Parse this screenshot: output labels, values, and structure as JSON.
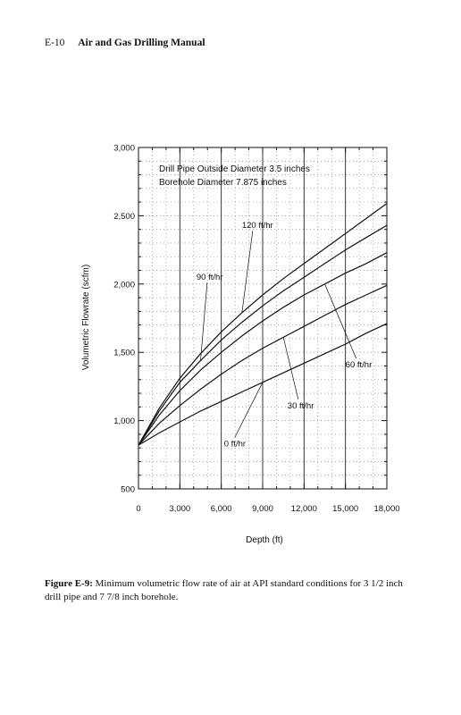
{
  "header": {
    "page_number": "E-10",
    "book_title": "Air and Gas Drilling Manual"
  },
  "caption": {
    "label": "Figure E-9:",
    "text": "Minimum volumetric flow rate of air at API standard conditions for 3 1/2 inch drill pipe and 7 7/8 inch borehole."
  },
  "chart_data": {
    "type": "line",
    "title": "",
    "xlabel": "Depth (ft)",
    "ylabel": "Volumetric Flowrate (scfm)",
    "xlim": [
      0,
      18000
    ],
    "ylim": [
      500,
      3000
    ],
    "x_ticks": [
      0,
      3000,
      6000,
      9000,
      12000,
      15000,
      18000
    ],
    "x_tick_labels": [
      "0",
      "3,000",
      "6,000",
      "9,000",
      "12,000",
      "15,000",
      "18,000"
    ],
    "y_ticks": [
      500,
      1000,
      1500,
      2000,
      2500,
      3000
    ],
    "y_tick_labels": [
      "500",
      "1,000",
      "1,500",
      "2,000",
      "2,500",
      "3,000"
    ],
    "grid": true,
    "annotations": [
      "Drill Pipe Outside Diameter 3.5 inches",
      "Borehole Diameter 7.875 inches"
    ],
    "x": [
      0,
      1500,
      3000,
      4500,
      6000,
      7500,
      9000,
      10500,
      12000,
      13500,
      15000,
      16500,
      18000
    ],
    "series": [
      {
        "name": "0 ft/hr",
        "label_pos": [
          6200,
          810
        ],
        "values": [
          820,
          910,
          990,
          1070,
          1140,
          1210,
          1280,
          1350,
          1420,
          1490,
          1560,
          1640,
          1710
        ]
      },
      {
        "name": "30 ft/hr",
        "label_pos": [
          10800,
          1090
        ],
        "values": [
          820,
          980,
          1110,
          1230,
          1340,
          1440,
          1530,
          1610,
          1690,
          1770,
          1850,
          1920,
          1990
        ]
      },
      {
        "name": "60 ft/hr",
        "label_pos": [
          15000,
          1390
        ],
        "values": [
          820,
          1040,
          1220,
          1370,
          1500,
          1620,
          1730,
          1830,
          1920,
          2000,
          2080,
          2150,
          2230
        ]
      },
      {
        "name": "90 ft/hr",
        "label_pos": [
          4200,
          2030
        ],
        "values": [
          820,
          1070,
          1280,
          1440,
          1590,
          1720,
          1840,
          1950,
          2050,
          2150,
          2250,
          2340,
          2430
        ]
      },
      {
        "name": "120 ft/hr",
        "label_pos": [
          7500,
          2410
        ],
        "values": [
          820,
          1090,
          1310,
          1490,
          1650,
          1790,
          1920,
          2040,
          2150,
          2260,
          2370,
          2480,
          2590
        ]
      }
    ]
  }
}
